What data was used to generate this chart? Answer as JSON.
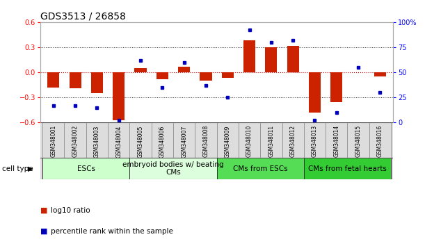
{
  "title": "GDS3513 / 26858",
  "samples": [
    "GSM348001",
    "GSM348002",
    "GSM348003",
    "GSM348004",
    "GSM348005",
    "GSM348006",
    "GSM348007",
    "GSM348008",
    "GSM348009",
    "GSM348010",
    "GSM348011",
    "GSM348012",
    "GSM348013",
    "GSM348014",
    "GSM348015",
    "GSM348016"
  ],
  "log10_ratio": [
    -0.18,
    -0.19,
    -0.25,
    -0.57,
    0.05,
    -0.08,
    0.07,
    -0.1,
    -0.07,
    0.38,
    0.3,
    0.32,
    -0.48,
    -0.36,
    0.0,
    -0.05
  ],
  "percentile_rank": [
    17,
    17,
    15,
    2,
    62,
    35,
    60,
    37,
    25,
    92,
    80,
    82,
    2,
    10,
    55,
    30
  ],
  "cell_types": [
    {
      "label": "ESCs",
      "start": 0,
      "end": 3,
      "color": "#ccffcc"
    },
    {
      "label": "embryoid bodies w/ beating\nCMs",
      "start": 4,
      "end": 7,
      "color": "#ddfedd"
    },
    {
      "label": "CMs from ESCs",
      "start": 8,
      "end": 11,
      "color": "#55dd55"
    },
    {
      "label": "CMs from fetal hearts",
      "start": 12,
      "end": 15,
      "color": "#33cc33"
    }
  ],
  "ylim_left": [
    -0.6,
    0.6
  ],
  "ylim_right": [
    0,
    100
  ],
  "yticks_left": [
    -0.6,
    -0.3,
    0.0,
    0.3,
    0.6
  ],
  "yticks_right": [
    0,
    25,
    50,
    75,
    100
  ],
  "bar_color": "#cc2200",
  "dot_color": "#0000bb",
  "grid_color": "#333333",
  "zero_line_color": "#cc0000",
  "background_color": "#ffffff",
  "title_fontsize": 10,
  "tick_fontsize": 7,
  "sample_fontsize": 5.5,
  "cell_type_fontsize": 7.5,
  "legend_fontsize": 7.5
}
